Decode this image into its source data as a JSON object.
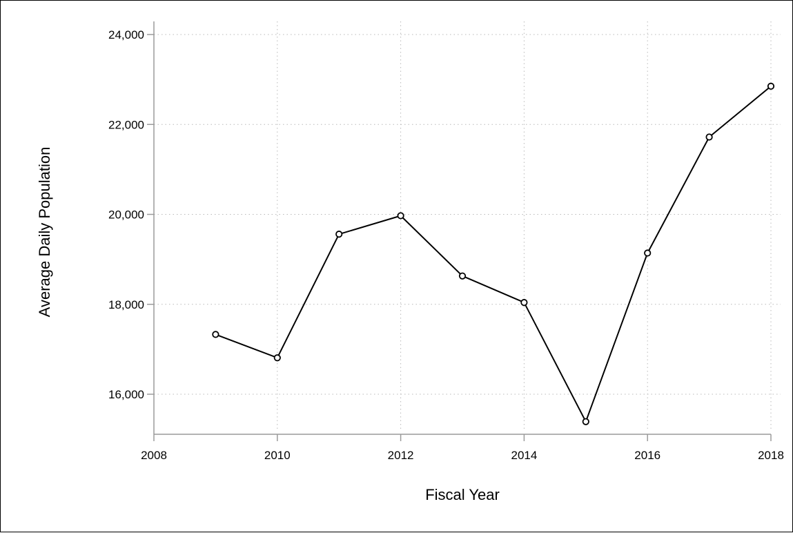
{
  "chart_data": {
    "type": "line",
    "title": "",
    "xlabel": "Fiscal Year",
    "ylabel": "Average Daily Population",
    "x": [
      2009,
      2010,
      2011,
      2012,
      2013,
      2014,
      2015,
      2016,
      2017,
      2018
    ],
    "series": [
      {
        "values": [
          17330,
          16810,
          19560,
          19970,
          18630,
          18040,
          15390,
          19140,
          21720,
          22850
        ]
      }
    ],
    "xlim": [
      2008,
      2018
    ],
    "ylim": [
      15300,
      24200
    ],
    "x_ticks": [
      2008,
      2010,
      2012,
      2014,
      2016,
      2018
    ],
    "x_tick_labels": [
      "2008",
      "2010",
      "2012",
      "2014",
      "2016",
      "2018"
    ],
    "y_ticks": [
      16000,
      18000,
      20000,
      22000,
      24000
    ],
    "y_tick_labels": [
      "16,000",
      "18,000",
      "20,000",
      "22,000",
      "24,000"
    ],
    "grid": true,
    "legend": "none",
    "colors": {
      "line": "#000000",
      "marker_fill": "#ffffff",
      "grid": "#b8b8b8",
      "axis": "#9a9a9a"
    },
    "marker": "hollow-circle"
  }
}
